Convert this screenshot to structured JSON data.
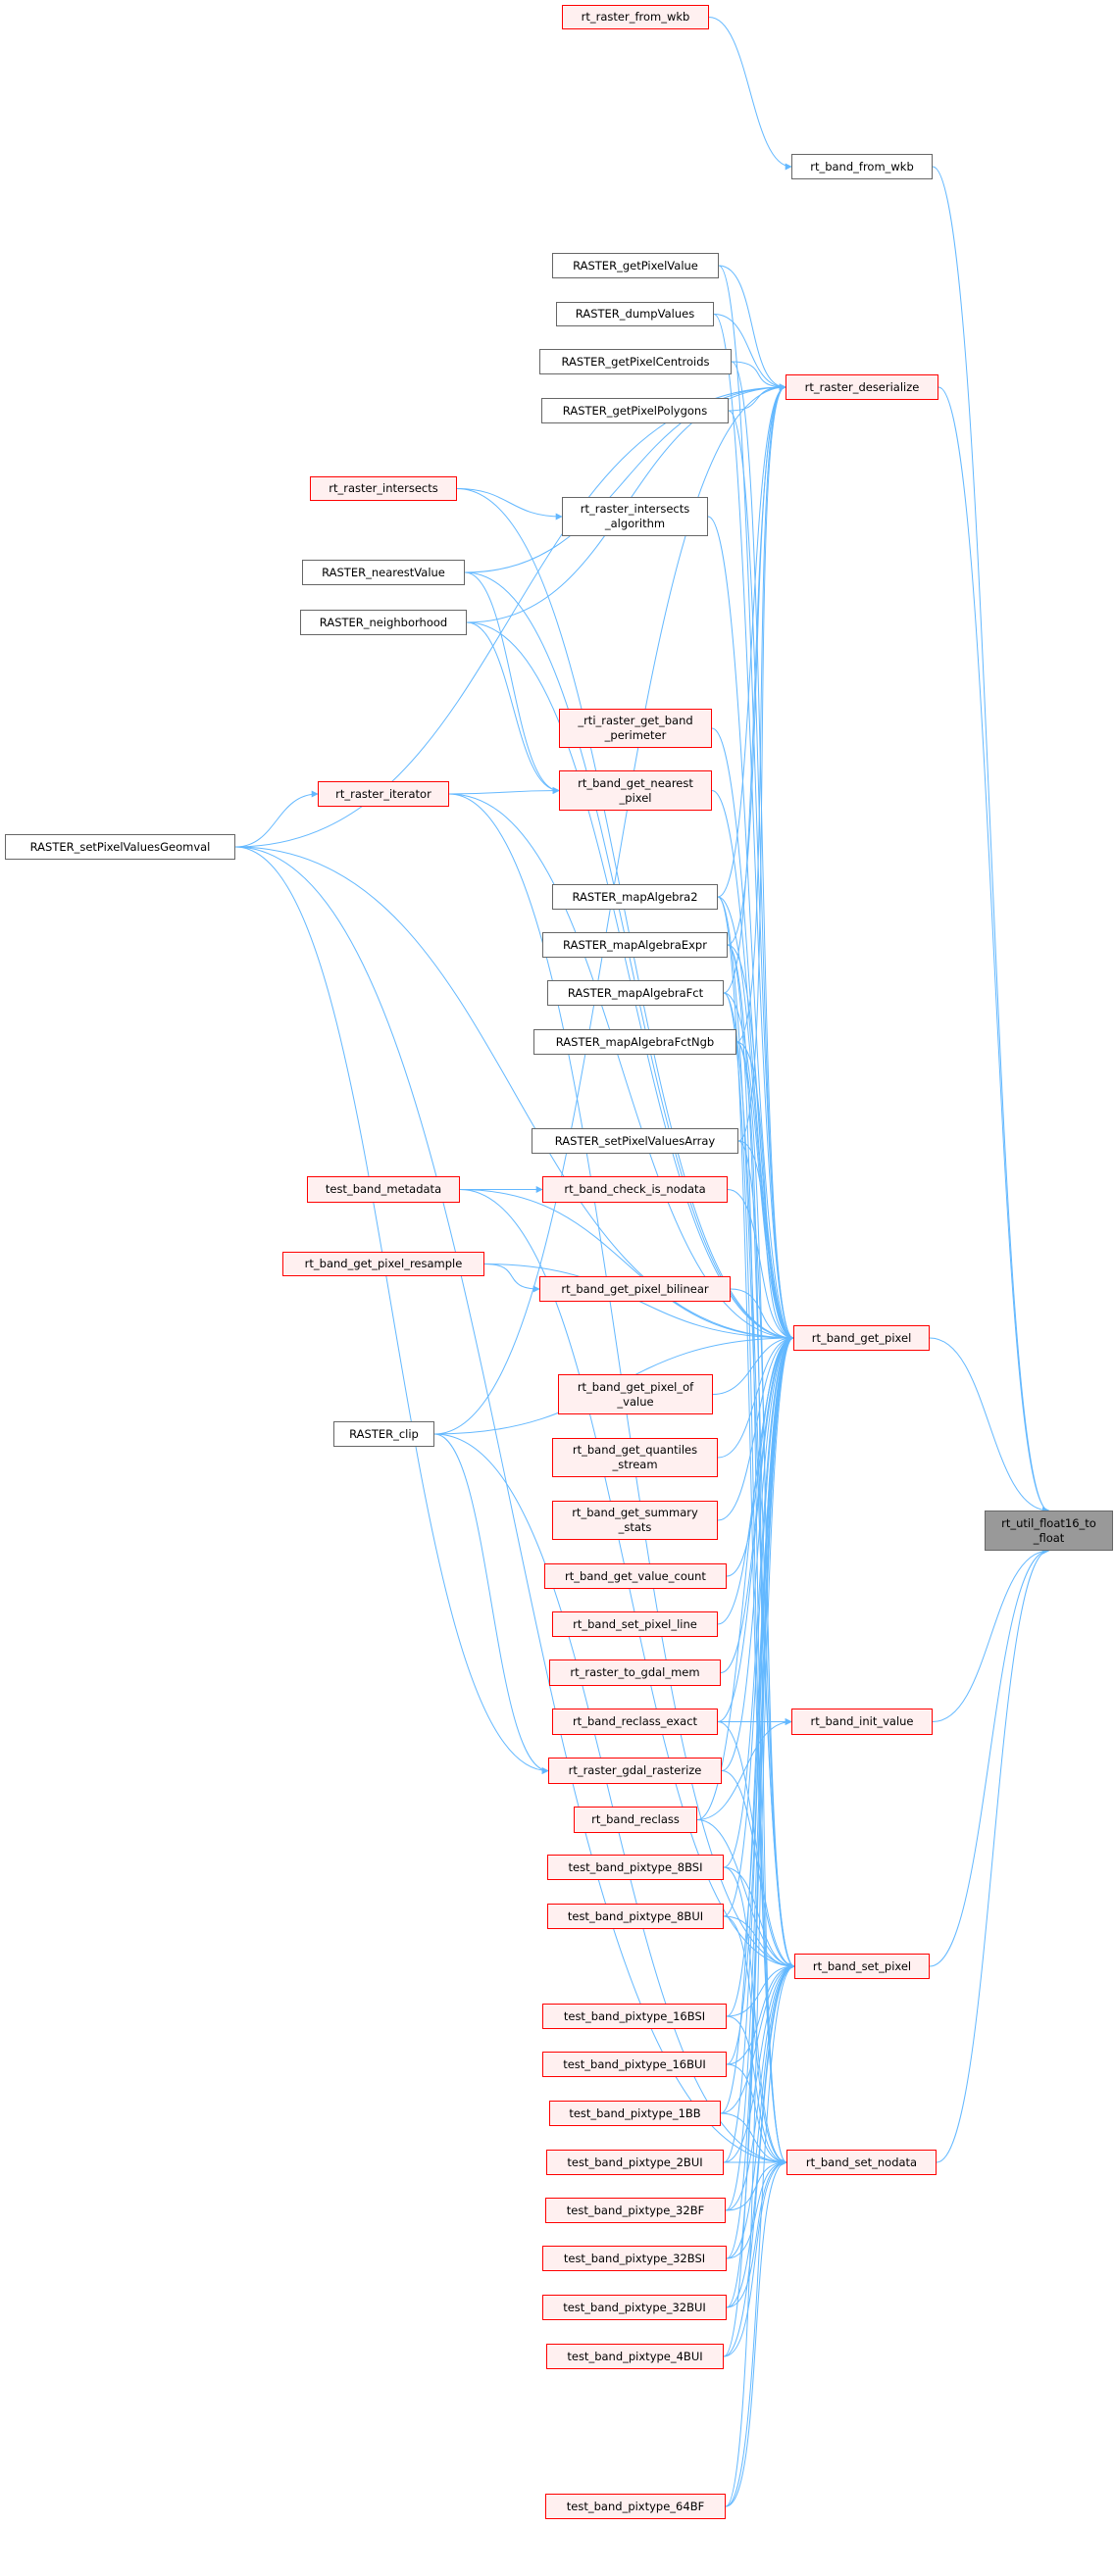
{
  "colors": {
    "edge": "#63b8ff",
    "red_border": "#ff0000",
    "red_fill": "#fff0f0",
    "plain_border": "#666666",
    "focus_fill": "#999999"
  },
  "nodes": [
    {
      "id": "from_wkb",
      "lines": [
        "rt_raster_from_wkb"
      ],
      "style": "red"
    },
    {
      "id": "band_from_wkb",
      "lines": [
        "rt_band_from_wkb"
      ],
      "style": "plain"
    },
    {
      "id": "getPixelValue",
      "lines": [
        "RASTER_getPixelValue"
      ],
      "style": "plain"
    },
    {
      "id": "dumpValues",
      "lines": [
        "RASTER_dumpValues"
      ],
      "style": "plain"
    },
    {
      "id": "centroids",
      "lines": [
        "RASTER_getPixelCentroids"
      ],
      "style": "plain"
    },
    {
      "id": "deserialize",
      "lines": [
        "rt_raster_deserialize"
      ],
      "style": "red"
    },
    {
      "id": "polygons",
      "lines": [
        "RASTER_getPixelPolygons"
      ],
      "style": "plain"
    },
    {
      "id": "intersects",
      "lines": [
        "rt_raster_intersects"
      ],
      "style": "red"
    },
    {
      "id": "algorithm",
      "lines": [
        "rt_raster_intersects",
        "_algorithm"
      ],
      "style": "plain"
    },
    {
      "id": "nearestValue",
      "lines": [
        "RASTER_nearestValue"
      ],
      "style": "plain"
    },
    {
      "id": "neighborhood",
      "lines": [
        "RASTER_neighborhood"
      ],
      "style": "plain"
    },
    {
      "id": "perimeter",
      "lines": [
        "_rti_raster_get_band",
        "_perimeter"
      ],
      "style": "red"
    },
    {
      "id": "nearest_pixel",
      "lines": [
        "rt_band_get_nearest",
        "_pixel"
      ],
      "style": "red"
    },
    {
      "id": "iterator",
      "lines": [
        "rt_raster_iterator"
      ],
      "style": "red"
    },
    {
      "id": "geomval",
      "lines": [
        "RASTER_setPixelValuesGeomval"
      ],
      "style": "plain"
    },
    {
      "id": "mapAlgebra2",
      "lines": [
        "RASTER_mapAlgebra2"
      ],
      "style": "plain"
    },
    {
      "id": "mapAlgebraExpr",
      "lines": [
        "RASTER_mapAlgebraExpr"
      ],
      "style": "plain"
    },
    {
      "id": "mapAlgebraFct",
      "lines": [
        "RASTER_mapAlgebraFct"
      ],
      "style": "plain"
    },
    {
      "id": "mapAlgebraFctNgb",
      "lines": [
        "RASTER_mapAlgebraFctNgb"
      ],
      "style": "plain"
    },
    {
      "id": "valuesArray",
      "lines": [
        "RASTER_setPixelValuesArray"
      ],
      "style": "plain"
    },
    {
      "id": "metadata",
      "lines": [
        "test_band_metadata"
      ],
      "style": "red"
    },
    {
      "id": "check_is_nodata",
      "lines": [
        "rt_band_check_is_nodata"
      ],
      "style": "red"
    },
    {
      "id": "resample",
      "lines": [
        "rt_band_get_pixel_resample"
      ],
      "style": "red"
    },
    {
      "id": "bilinear",
      "lines": [
        "rt_band_get_pixel_bilinear"
      ],
      "style": "red"
    },
    {
      "id": "get_pixel",
      "lines": [
        "rt_band_get_pixel"
      ],
      "style": "red"
    },
    {
      "id": "pixel_of_value",
      "lines": [
        "rt_band_get_pixel_of",
        "_value"
      ],
      "style": "red"
    },
    {
      "id": "clip",
      "lines": [
        "RASTER_clip"
      ],
      "style": "plain"
    },
    {
      "id": "quantiles",
      "lines": [
        "rt_band_get_quantiles",
        "_stream"
      ],
      "style": "red"
    },
    {
      "id": "float16",
      "lines": [
        "rt_util_float16_to",
        "_float"
      ],
      "style": "focus"
    },
    {
      "id": "summary",
      "lines": [
        "rt_band_get_summary",
        "_stats"
      ],
      "style": "red"
    },
    {
      "id": "value_count",
      "lines": [
        "rt_band_get_value_count"
      ],
      "style": "red"
    },
    {
      "id": "set_pixel_line",
      "lines": [
        "rt_band_set_pixel_line"
      ],
      "style": "red"
    },
    {
      "id": "to_gdal_mem",
      "lines": [
        "rt_raster_to_gdal_mem"
      ],
      "style": "red"
    },
    {
      "id": "reclass_exact",
      "lines": [
        "rt_band_reclass_exact"
      ],
      "style": "red"
    },
    {
      "id": "init_value",
      "lines": [
        "rt_band_init_value"
      ],
      "style": "red"
    },
    {
      "id": "gdal_rasterize",
      "lines": [
        "rt_raster_gdal_rasterize"
      ],
      "style": "red"
    },
    {
      "id": "reclass",
      "lines": [
        "rt_band_reclass"
      ],
      "style": "red"
    },
    {
      "id": "t8BSI",
      "lines": [
        "test_band_pixtype_8BSI"
      ],
      "style": "red"
    },
    {
      "id": "t8BUI",
      "lines": [
        "test_band_pixtype_8BUI"
      ],
      "style": "red"
    },
    {
      "id": "set_pixel",
      "lines": [
        "rt_band_set_pixel"
      ],
      "style": "red"
    },
    {
      "id": "t16BSI",
      "lines": [
        "test_band_pixtype_16BSI"
      ],
      "style": "red"
    },
    {
      "id": "t16BUI",
      "lines": [
        "test_band_pixtype_16BUI"
      ],
      "style": "red"
    },
    {
      "id": "t1BB",
      "lines": [
        "test_band_pixtype_1BB"
      ],
      "style": "red"
    },
    {
      "id": "t2BUI",
      "lines": [
        "test_band_pixtype_2BUI"
      ],
      "style": "red"
    },
    {
      "id": "set_nodata",
      "lines": [
        "rt_band_set_nodata"
      ],
      "style": "red"
    },
    {
      "id": "t32BF",
      "lines": [
        "test_band_pixtype_32BF"
      ],
      "style": "red"
    },
    {
      "id": "t32BSI",
      "lines": [
        "test_band_pixtype_32BSI"
      ],
      "style": "red"
    },
    {
      "id": "t32BUI",
      "lines": [
        "test_band_pixtype_32BUI"
      ],
      "style": "red"
    },
    {
      "id": "t4BUI",
      "lines": [
        "test_band_pixtype_4BUI"
      ],
      "style": "red"
    },
    {
      "id": "t64BF",
      "lines": [
        "test_band_pixtype_64BF"
      ],
      "style": "red"
    }
  ],
  "edges": [
    [
      "from_wkb",
      "band_from_wkb"
    ],
    [
      "band_from_wkb",
      "float16"
    ],
    [
      "deserialize",
      "float16"
    ],
    [
      "get_pixel",
      "float16"
    ],
    [
      "init_value",
      "float16"
    ],
    [
      "set_pixel",
      "float16"
    ],
    [
      "set_nodata",
      "float16"
    ],
    [
      "getPixelValue",
      "deserialize"
    ],
    [
      "getPixelValue",
      "get_pixel"
    ],
    [
      "dumpValues",
      "deserialize"
    ],
    [
      "dumpValues",
      "get_pixel"
    ],
    [
      "centroids",
      "deserialize"
    ],
    [
      "centroids",
      "get_pixel"
    ],
    [
      "polygons",
      "deserialize"
    ],
    [
      "polygons",
      "get_pixel"
    ],
    [
      "geomval",
      "deserialize"
    ],
    [
      "geomval",
      "iterator"
    ],
    [
      "geomval",
      "get_pixel"
    ],
    [
      "geomval",
      "gdal_rasterize"
    ],
    [
      "geomval",
      "set_nodata"
    ],
    [
      "nearestValue",
      "deserialize"
    ],
    [
      "nearestValue",
      "nearest_pixel"
    ],
    [
      "nearestValue",
      "get_pixel"
    ],
    [
      "neighborhood",
      "deserialize"
    ],
    [
      "neighborhood",
      "nearest_pixel"
    ],
    [
      "neighborhood",
      "get_pixel"
    ],
    [
      "intersects",
      "algorithm"
    ],
    [
      "intersects",
      "get_pixel"
    ],
    [
      "algorithm",
      "get_pixel"
    ],
    [
      "iterator",
      "nearest_pixel"
    ],
    [
      "iterator",
      "get_pixel"
    ],
    [
      "iterator",
      "set_pixel"
    ],
    [
      "perimeter",
      "get_pixel"
    ],
    [
      "nearest_pixel",
      "get_pixel"
    ],
    [
      "mapAlgebra2",
      "deserialize"
    ],
    [
      "mapAlgebra2",
      "get_pixel"
    ],
    [
      "mapAlgebra2",
      "set_pixel"
    ],
    [
      "mapAlgebra2",
      "set_nodata"
    ],
    [
      "mapAlgebraExpr",
      "deserialize"
    ],
    [
      "mapAlgebraExpr",
      "get_pixel"
    ],
    [
      "mapAlgebraExpr",
      "set_pixel"
    ],
    [
      "mapAlgebraExpr",
      "set_nodata"
    ],
    [
      "mapAlgebraFct",
      "deserialize"
    ],
    [
      "mapAlgebraFct",
      "get_pixel"
    ],
    [
      "mapAlgebraFct",
      "set_pixel"
    ],
    [
      "mapAlgebraFct",
      "set_nodata"
    ],
    [
      "mapAlgebraFctNgb",
      "deserialize"
    ],
    [
      "mapAlgebraFctNgb",
      "get_pixel"
    ],
    [
      "mapAlgebraFctNgb",
      "set_pixel"
    ],
    [
      "mapAlgebraFctNgb",
      "set_nodata"
    ],
    [
      "valuesArray",
      "deserialize"
    ],
    [
      "valuesArray",
      "get_pixel"
    ],
    [
      "valuesArray",
      "set_pixel"
    ],
    [
      "metadata",
      "check_is_nodata"
    ],
    [
      "metadata",
      "get_pixel"
    ],
    [
      "metadata",
      "set_pixel"
    ],
    [
      "check_is_nodata",
      "get_pixel"
    ],
    [
      "resample",
      "bilinear"
    ],
    [
      "resample",
      "get_pixel"
    ],
    [
      "bilinear",
      "get_pixel"
    ],
    [
      "pixel_of_value",
      "get_pixel"
    ],
    [
      "quantiles",
      "get_pixel"
    ],
    [
      "summary",
      "get_pixel"
    ],
    [
      "value_count",
      "get_pixel"
    ],
    [
      "set_pixel_line",
      "get_pixel"
    ],
    [
      "to_gdal_mem",
      "get_pixel"
    ],
    [
      "clip",
      "deserialize"
    ],
    [
      "clip",
      "get_pixel"
    ],
    [
      "clip",
      "gdal_rasterize"
    ],
    [
      "clip",
      "set_nodata"
    ],
    [
      "reclass_exact",
      "init_value"
    ],
    [
      "reclass_exact",
      "get_pixel"
    ],
    [
      "reclass_exact",
      "set_pixel"
    ],
    [
      "gdal_rasterize",
      "get_pixel"
    ],
    [
      "gdal_rasterize",
      "set_pixel"
    ],
    [
      "reclass",
      "init_value"
    ],
    [
      "reclass",
      "get_pixel"
    ],
    [
      "reclass",
      "set_pixel"
    ],
    [
      "t8BSI",
      "get_pixel"
    ],
    [
      "t8BSI",
      "set_pixel"
    ],
    [
      "t8BSI",
      "set_nodata"
    ],
    [
      "t8BUI",
      "get_pixel"
    ],
    [
      "t8BUI",
      "set_pixel"
    ],
    [
      "t8BUI",
      "set_nodata"
    ],
    [
      "t16BSI",
      "get_pixel"
    ],
    [
      "t16BSI",
      "set_pixel"
    ],
    [
      "t16BSI",
      "set_nodata"
    ],
    [
      "t16BUI",
      "get_pixel"
    ],
    [
      "t16BUI",
      "set_pixel"
    ],
    [
      "t16BUI",
      "set_nodata"
    ],
    [
      "t1BB",
      "get_pixel"
    ],
    [
      "t1BB",
      "set_pixel"
    ],
    [
      "t1BB",
      "set_nodata"
    ],
    [
      "t2BUI",
      "get_pixel"
    ],
    [
      "t2BUI",
      "set_pixel"
    ],
    [
      "t2BUI",
      "set_nodata"
    ],
    [
      "t32BF",
      "get_pixel"
    ],
    [
      "t32BF",
      "set_pixel"
    ],
    [
      "t32BF",
      "set_nodata"
    ],
    [
      "t32BSI",
      "get_pixel"
    ],
    [
      "t32BSI",
      "set_pixel"
    ],
    [
      "t32BSI",
      "set_nodata"
    ],
    [
      "t32BUI",
      "get_pixel"
    ],
    [
      "t32BUI",
      "set_pixel"
    ],
    [
      "t32BUI",
      "set_nodata"
    ],
    [
      "t4BUI",
      "get_pixel"
    ],
    [
      "t4BUI",
      "set_pixel"
    ],
    [
      "t4BUI",
      "set_nodata"
    ],
    [
      "t64BF",
      "get_pixel"
    ],
    [
      "t64BF",
      "set_pixel"
    ],
    [
      "t64BF",
      "set_nodata"
    ]
  ]
}
